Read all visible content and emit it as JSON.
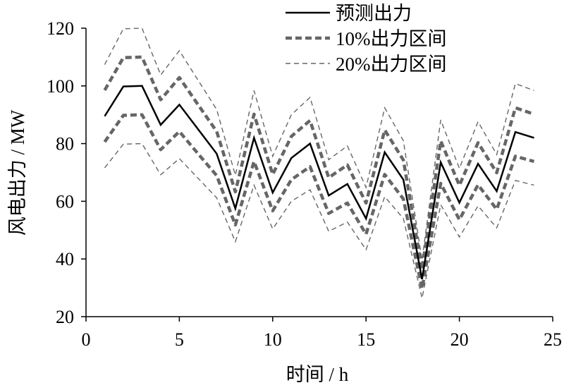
{
  "chart_data": {
    "type": "line",
    "xlabel": "时间 / h",
    "ylabel": "风电出力 / MW",
    "xlim": [
      0,
      25
    ],
    "ylim": [
      20,
      120
    ],
    "xticks": [
      0,
      5,
      10,
      15,
      20,
      25
    ],
    "yticks": [
      20,
      40,
      60,
      80,
      100,
      120
    ],
    "grid": false,
    "legend_position": "top-right",
    "x": [
      1,
      2,
      3,
      4,
      5,
      6,
      7,
      8,
      9,
      10,
      11,
      12,
      13,
      14,
      15,
      16,
      17,
      18,
      19,
      20,
      21,
      22,
      23,
      24
    ],
    "series": [
      {
        "name": "预测出力",
        "style": "solid",
        "color": "#000000",
        "values": [
          89.5,
          99.8,
          100,
          86.5,
          93.5,
          85,
          76.5,
          57.5,
          82,
          63,
          75,
          80,
          62,
          66,
          54,
          77,
          67.5,
          33,
          73.5,
          59.5,
          73,
          63.5,
          84,
          82
        ]
      },
      {
        "name": "10%出力区间",
        "style": "thick-dashed",
        "color": "#666666",
        "band": true,
        "upper": [
          98.5,
          109.8,
          110,
          95.2,
          102.9,
          93.5,
          84.2,
          63.3,
          90.2,
          69.3,
          82.5,
          88,
          68.2,
          72.6,
          59.4,
          84.7,
          74.3,
          36.3,
          80.9,
          65.5,
          80.3,
          69.9,
          92.4,
          90.2
        ],
        "lower": [
          80.6,
          89.8,
          90,
          77.9,
          84.2,
          76.5,
          68.9,
          51.8,
          73.8,
          56.7,
          67.5,
          72,
          55.8,
          59.4,
          48.6,
          69.3,
          60.8,
          29.7,
          66.2,
          53.6,
          65.7,
          57.2,
          75.6,
          73.8
        ]
      },
      {
        "name": "20%出力区间",
        "style": "thin-dashed",
        "color": "#666666",
        "band": true,
        "upper": [
          107.4,
          119.8,
          120,
          103.8,
          112.2,
          102,
          91.8,
          69,
          98.4,
          75.6,
          90,
          96,
          74.4,
          79.2,
          64.8,
          92.4,
          81,
          39.6,
          88.2,
          71.4,
          87.6,
          76.2,
          100.8,
          98.4
        ],
        "lower": [
          71.6,
          79.8,
          80,
          69.2,
          74.8,
          68,
          61.2,
          46,
          65.6,
          50.4,
          60,
          64,
          49.6,
          52.8,
          43.2,
          61.6,
          54,
          26.4,
          58.8,
          47.6,
          58.4,
          50.8,
          67.2,
          65.6
        ]
      }
    ]
  }
}
